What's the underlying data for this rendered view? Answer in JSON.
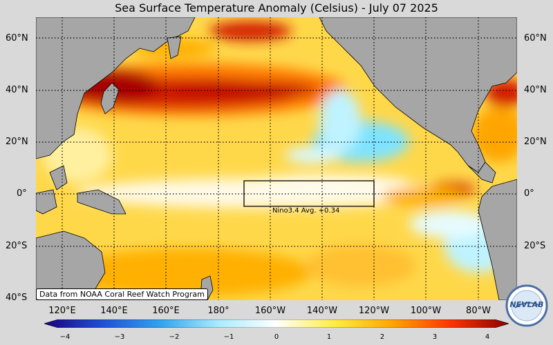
{
  "title": "Sea Surface Temperature Anomaly (Celsius) - July 07 2025",
  "lat_labels": [
    "60°N",
    "40°N",
    "20°N",
    "0°",
    "20°S",
    "40°S"
  ],
  "lon_labels": [
    "120°E",
    "140°E",
    "160°E",
    "180°",
    "160°W",
    "140°W",
    "120°W",
    "100°W",
    "80°W"
  ],
  "nino_box": {
    "label": "Nino3.4 Avg. +0.34",
    "value": 0.34
  },
  "credit": "Data from NOAA Coral Reef Watch Program",
  "colorbar": {
    "ticks": [
      "−4",
      "−3",
      "−2",
      "−1",
      "0",
      "1",
      "2",
      "3",
      "4"
    ],
    "range": [
      -4,
      4
    ],
    "colors": [
      "#1a0080",
      "#1f4fd6",
      "#2fa3f0",
      "#a8ecff",
      "#ffffff",
      "#ffee40",
      "#ffa500",
      "#ff3300",
      "#8a0000"
    ]
  },
  "logo": {
    "text": "NEVLAB"
  },
  "colors": {
    "land": "#a6a6a6",
    "background": "#d9d9d9",
    "anomaly_warm_strong": "#a80000",
    "anomaly_warm": "#ff7a00",
    "anomaly_mild": "#ffd84a",
    "anomaly_cool": "#7fe3ff",
    "anomaly_neutral": "#fff9e6"
  }
}
